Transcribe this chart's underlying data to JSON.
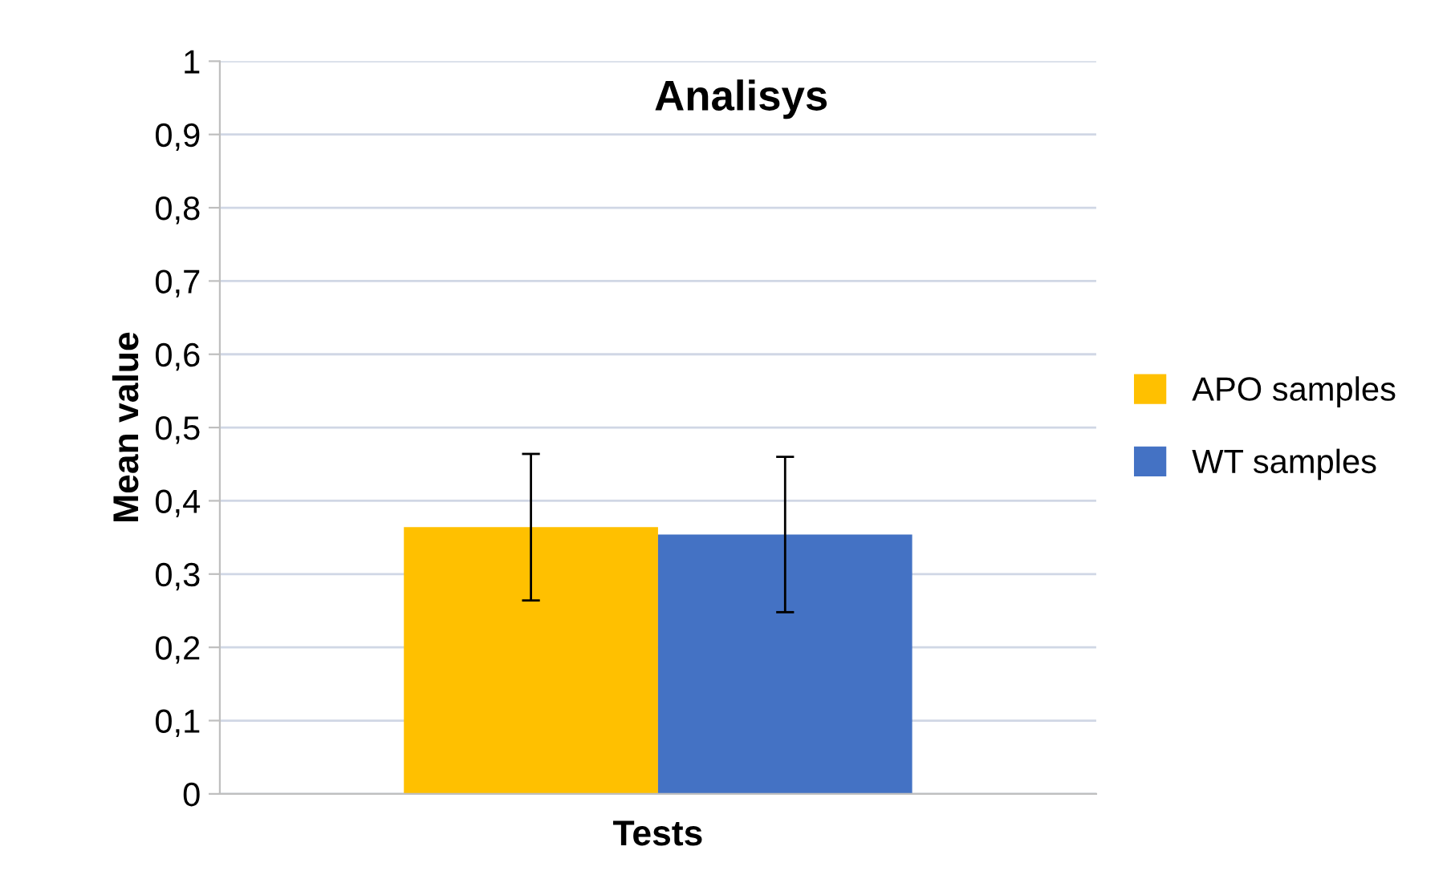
{
  "chart_data": {
    "type": "bar",
    "title": "Analisys",
    "xlabel": "Tests",
    "ylabel": "Mean value",
    "categories": [
      null
    ],
    "series": [
      {
        "name": "APO samples",
        "color": "#ffc000",
        "values": [
          0.364
        ],
        "errors": [
          0.1
        ]
      },
      {
        "name": "WT samples",
        "color": "#4472c4",
        "values": [
          0.354
        ],
        "errors": [
          0.106
        ]
      }
    ],
    "ylim": [
      0,
      1
    ],
    "yticks": [
      0,
      {
        "value": 0.1,
        "label": "0,1"
      },
      {
        "value": 0.2,
        "label": "0,2"
      },
      {
        "value": 0.3,
        "label": "0,3"
      },
      {
        "value": 0.4,
        "label": "0,4"
      },
      {
        "value": 0.5,
        "label": "0,5"
      },
      {
        "value": 0.6,
        "label": "0,6"
      },
      {
        "value": 0.7,
        "label": "0,7"
      },
      {
        "value": 0.8,
        "label": "0,8"
      },
      {
        "value": 0.9,
        "label": "0,9"
      },
      1
    ],
    "grid": "y",
    "legend": "right"
  }
}
